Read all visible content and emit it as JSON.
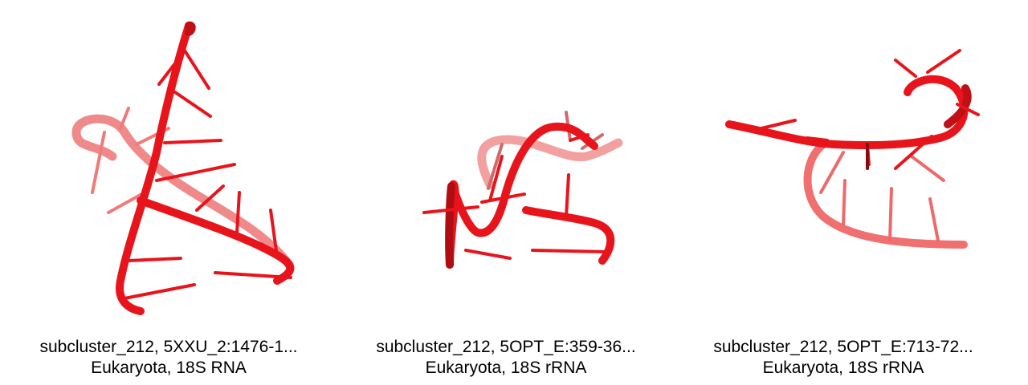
{
  "structure_color": "#e8141c",
  "panels": [
    {
      "title": "subcluster_212, 5XXU_2:1476-1...",
      "subtitle": "Eukaryota, 18S RNA",
      "image": "rna-3d-structure-render"
    },
    {
      "title": "subcluster_212, 5OPT_E:359-36...",
      "subtitle": "Eukaryota, 18S rRNA",
      "image": "rna-3d-structure-render"
    },
    {
      "title": "subcluster_212, 5OPT_E:713-72...",
      "subtitle": "Eukaryota, 18S rRNA",
      "image": "rna-3d-structure-render"
    }
  ]
}
